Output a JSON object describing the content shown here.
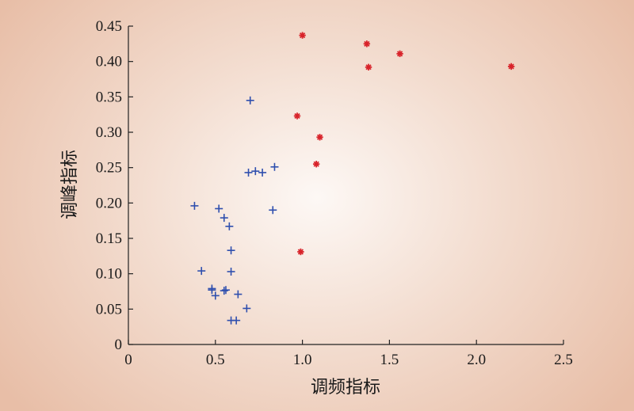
{
  "chart_data": {
    "type": "scatter",
    "title": "",
    "xlabel": "调频指标",
    "ylabel": "调峰指标",
    "xlim": [
      0,
      2.5
    ],
    "ylim": [
      0,
      0.45
    ],
    "x_ticks": [
      "0",
      "0.5",
      "1.0",
      "1.5",
      "2.0",
      "2.5"
    ],
    "y_ticks": [
      "0",
      "0.05",
      "0.10",
      "0.15",
      "0.20",
      "0.25",
      "0.30",
      "0.35",
      "0.40",
      "0.45"
    ],
    "grid": false,
    "series": [
      {
        "marker": "plus",
        "color": "#2f4fae",
        "points": [
          [
            0.7,
            0.345
          ],
          [
            0.69,
            0.243
          ],
          [
            0.73,
            0.245
          ],
          [
            0.77,
            0.243
          ],
          [
            0.84,
            0.251
          ],
          [
            0.38,
            0.196
          ],
          [
            0.52,
            0.192
          ],
          [
            0.83,
            0.19
          ],
          [
            0.55,
            0.179
          ],
          [
            0.58,
            0.167
          ],
          [
            0.59,
            0.133
          ],
          [
            0.42,
            0.104
          ],
          [
            0.59,
            0.103
          ],
          [
            0.48,
            0.079
          ],
          [
            0.55,
            0.076
          ],
          [
            0.56,
            0.077
          ],
          [
            0.48,
            0.077
          ],
          [
            0.63,
            0.071
          ],
          [
            0.5,
            0.069
          ],
          [
            0.68,
            0.051
          ],
          [
            0.59,
            0.034
          ],
          [
            0.62,
            0.034
          ]
        ]
      },
      {
        "marker": "asterisk",
        "color": "#d8232a",
        "points": [
          [
            1.0,
            0.437
          ],
          [
            1.37,
            0.425
          ],
          [
            1.56,
            0.411
          ],
          [
            1.38,
            0.392
          ],
          [
            2.2,
            0.393
          ],
          [
            0.97,
            0.323
          ],
          [
            1.1,
            0.293
          ],
          [
            1.08,
            0.255
          ],
          [
            0.99,
            0.131
          ]
        ]
      }
    ]
  }
}
